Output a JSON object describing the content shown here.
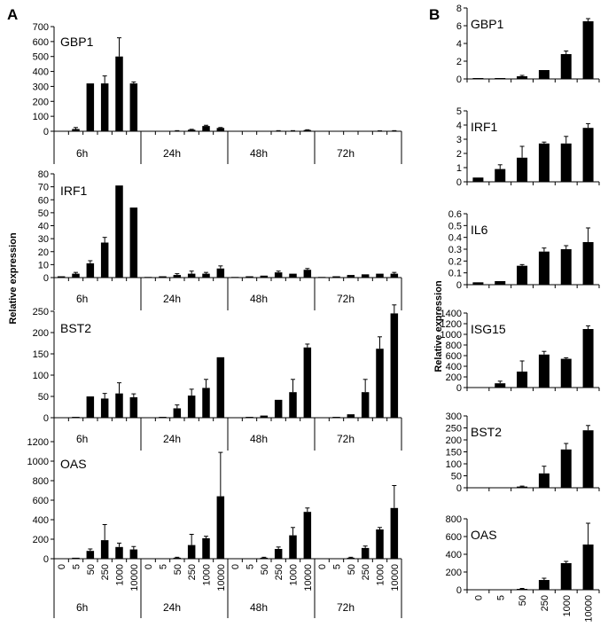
{
  "panel_labels": [
    "A",
    "B"
  ],
  "ylabel": "Relative expression",
  "dose_ticks": [
    "0",
    "5",
    "50",
    "250",
    "1000",
    "10000"
  ],
  "time_labels": [
    "6h",
    "24h",
    "48h",
    "72h"
  ],
  "chart_data": [
    {
      "panel": "A",
      "type": "bar",
      "title": "GBP1",
      "ylim": [
        0,
        700
      ],
      "yticks": [
        0,
        100,
        200,
        300,
        400,
        500,
        600,
        700
      ],
      "groups": [
        "6h",
        "24h",
        "48h",
        "72h"
      ],
      "categories": [
        "0",
        "5",
        "50",
        "250",
        "1000",
        "10000"
      ],
      "series": [
        {
          "group": "6h",
          "values": [
            2,
            15,
            320,
            320,
            500,
            320
          ],
          "errors": [
            0,
            10,
            0,
            50,
            125,
            10
          ]
        },
        {
          "group": "24h",
          "values": [
            1,
            1,
            3,
            10,
            35,
            22
          ],
          "errors": [
            0,
            0,
            1,
            3,
            5,
            3
          ]
        },
        {
          "group": "48h",
          "values": [
            1,
            1,
            2,
            3,
            3,
            8
          ],
          "errors": [
            0,
            0,
            0,
            1,
            1,
            2
          ]
        },
        {
          "group": "72h",
          "values": [
            1,
            1,
            1,
            2,
            2,
            3
          ],
          "errors": [
            0,
            0,
            0,
            0,
            1,
            1
          ]
        }
      ]
    },
    {
      "panel": "A",
      "type": "bar",
      "title": "IRF1",
      "ylim": [
        0,
        80
      ],
      "yticks": [
        0,
        10,
        20,
        30,
        40,
        50,
        60,
        70,
        80
      ],
      "groups": [
        "6h",
        "24h",
        "48h",
        "72h"
      ],
      "categories": [
        "0",
        "5",
        "50",
        "250",
        "1000",
        "10000"
      ],
      "series": [
        {
          "group": "6h",
          "values": [
            1,
            3,
            11,
            27,
            71,
            54
          ],
          "errors": [
            0,
            1,
            2,
            4,
            0,
            0
          ]
        },
        {
          "group": "24h",
          "values": [
            0.5,
            1,
            2,
            3,
            3,
            7
          ],
          "errors": [
            0,
            0,
            1,
            2,
            1,
            2
          ]
        },
        {
          "group": "48h",
          "values": [
            0.5,
            1,
            1.5,
            4,
            3,
            6
          ],
          "errors": [
            0,
            0,
            0,
            1,
            0,
            1
          ]
        },
        {
          "group": "72h",
          "values": [
            0.5,
            1,
            2,
            2.5,
            3,
            3
          ],
          "errors": [
            0,
            0,
            0,
            0,
            0,
            1
          ]
        }
      ]
    },
    {
      "panel": "A",
      "type": "bar",
      "title": "BST2",
      "ylim": [
        0,
        250
      ],
      "yticks": [
        0,
        50,
        100,
        150,
        200,
        250
      ],
      "groups": [
        "6h",
        "24h",
        "48h",
        "72h"
      ],
      "categories": [
        "0",
        "5",
        "50",
        "250",
        "1000",
        "10000"
      ],
      "series": [
        {
          "group": "6h",
          "values": [
            0,
            2,
            50,
            45,
            57,
            48
          ],
          "errors": [
            0,
            0,
            0,
            12,
            25,
            8
          ]
        },
        {
          "group": "24h",
          "values": [
            0,
            2,
            22,
            52,
            70,
            142
          ],
          "errors": [
            0,
            0,
            8,
            15,
            20,
            0
          ]
        },
        {
          "group": "48h",
          "values": [
            0,
            2,
            5,
            42,
            60,
            165
          ],
          "errors": [
            0,
            0,
            0,
            0,
            30,
            8
          ]
        },
        {
          "group": "72h",
          "values": [
            0,
            2,
            8,
            60,
            162,
            245
          ],
          "errors": [
            0,
            0,
            0,
            30,
            28,
            20
          ]
        }
      ]
    },
    {
      "panel": "A",
      "type": "bar",
      "title": "OAS",
      "ylim": [
        0,
        1200
      ],
      "yticks": [
        0,
        200,
        400,
        600,
        800,
        1000,
        1200
      ],
      "groups": [
        "6h",
        "24h",
        "48h",
        "72h"
      ],
      "categories": [
        "0",
        "5",
        "50",
        "250",
        "1000",
        "10000"
      ],
      "series": [
        {
          "group": "6h",
          "values": [
            0,
            10,
            80,
            190,
            120,
            95
          ],
          "errors": [
            0,
            0,
            20,
            160,
            40,
            30
          ]
        },
        {
          "group": "24h",
          "values": [
            0,
            2,
            10,
            140,
            210,
            640
          ],
          "errors": [
            0,
            0,
            5,
            110,
            20,
            450
          ]
        },
        {
          "group": "48h",
          "values": [
            0,
            2,
            10,
            100,
            240,
            480
          ],
          "errors": [
            0,
            0,
            5,
            20,
            80,
            40
          ]
        },
        {
          "group": "72h",
          "values": [
            0,
            2,
            10,
            110,
            300,
            520
          ],
          "errors": [
            0,
            0,
            5,
            20,
            20,
            230
          ]
        }
      ]
    },
    {
      "panel": "B",
      "type": "bar",
      "title": "GBP1",
      "ylim": [
        0,
        8
      ],
      "yticks": [
        0,
        2,
        4,
        6,
        8
      ],
      "categories": [
        "0",
        "5",
        "50",
        "250",
        "1000",
        "10000"
      ],
      "values": [
        0.1,
        0.1,
        0.3,
        1,
        2.8,
        6.5
      ],
      "errors": [
        0,
        0,
        0.1,
        0,
        0.35,
        0.3
      ]
    },
    {
      "panel": "B",
      "type": "bar",
      "title": "IRF1",
      "ylim": [
        0,
        5
      ],
      "yticks": [
        0,
        1,
        2,
        3,
        4,
        5
      ],
      "categories": [
        "0",
        "5",
        "50",
        "250",
        "1000",
        "10000"
      ],
      "values": [
        0.3,
        0.9,
        1.7,
        2.7,
        2.7,
        3.8
      ],
      "errors": [
        0,
        0.3,
        0.8,
        0.1,
        0.5,
        0.3
      ]
    },
    {
      "panel": "B",
      "type": "bar",
      "title": "IL6",
      "ylim": [
        0,
        0.6
      ],
      "yticks": [
        0,
        0.1,
        0.2,
        0.3,
        0.4,
        0.5,
        0.6
      ],
      "categories": [
        "0",
        "5",
        "50",
        "250",
        "1000",
        "10000"
      ],
      "values": [
        0.02,
        0.03,
        0.16,
        0.28,
        0.3,
        0.36
      ],
      "errors": [
        0,
        0,
        0.01,
        0.03,
        0.03,
        0.12
      ]
    },
    {
      "panel": "B",
      "type": "bar",
      "title": "ISG15",
      "ylim": [
        0,
        1400
      ],
      "yticks": [
        0,
        200,
        400,
        600,
        800,
        1000,
        1200,
        1400
      ],
      "categories": [
        "0",
        "5",
        "50",
        "250",
        "1000",
        "10000"
      ],
      "values": [
        0,
        80,
        300,
        620,
        540,
        1100
      ],
      "errors": [
        0,
        40,
        200,
        60,
        20,
        60
      ]
    },
    {
      "panel": "B",
      "type": "bar",
      "title": "BST2",
      "ylim": [
        0,
        300
      ],
      "yticks": [
        0,
        50,
        100,
        150,
        200,
        250,
        300
      ],
      "categories": [
        "0",
        "5",
        "50",
        "250",
        "1000",
        "10000"
      ],
      "values": [
        0,
        1,
        5,
        60,
        160,
        240
      ],
      "errors": [
        0,
        0,
        2,
        30,
        25,
        20
      ]
    },
    {
      "panel": "B",
      "type": "bar",
      "title": "OAS",
      "ylim": [
        0,
        800
      ],
      "yticks": [
        0,
        200,
        400,
        600,
        800
      ],
      "categories": [
        "0",
        "5",
        "50",
        "250",
        "1000",
        "10000"
      ],
      "values": [
        0,
        2,
        10,
        110,
        300,
        510
      ],
      "errors": [
        0,
        0,
        5,
        20,
        20,
        240
      ]
    }
  ]
}
